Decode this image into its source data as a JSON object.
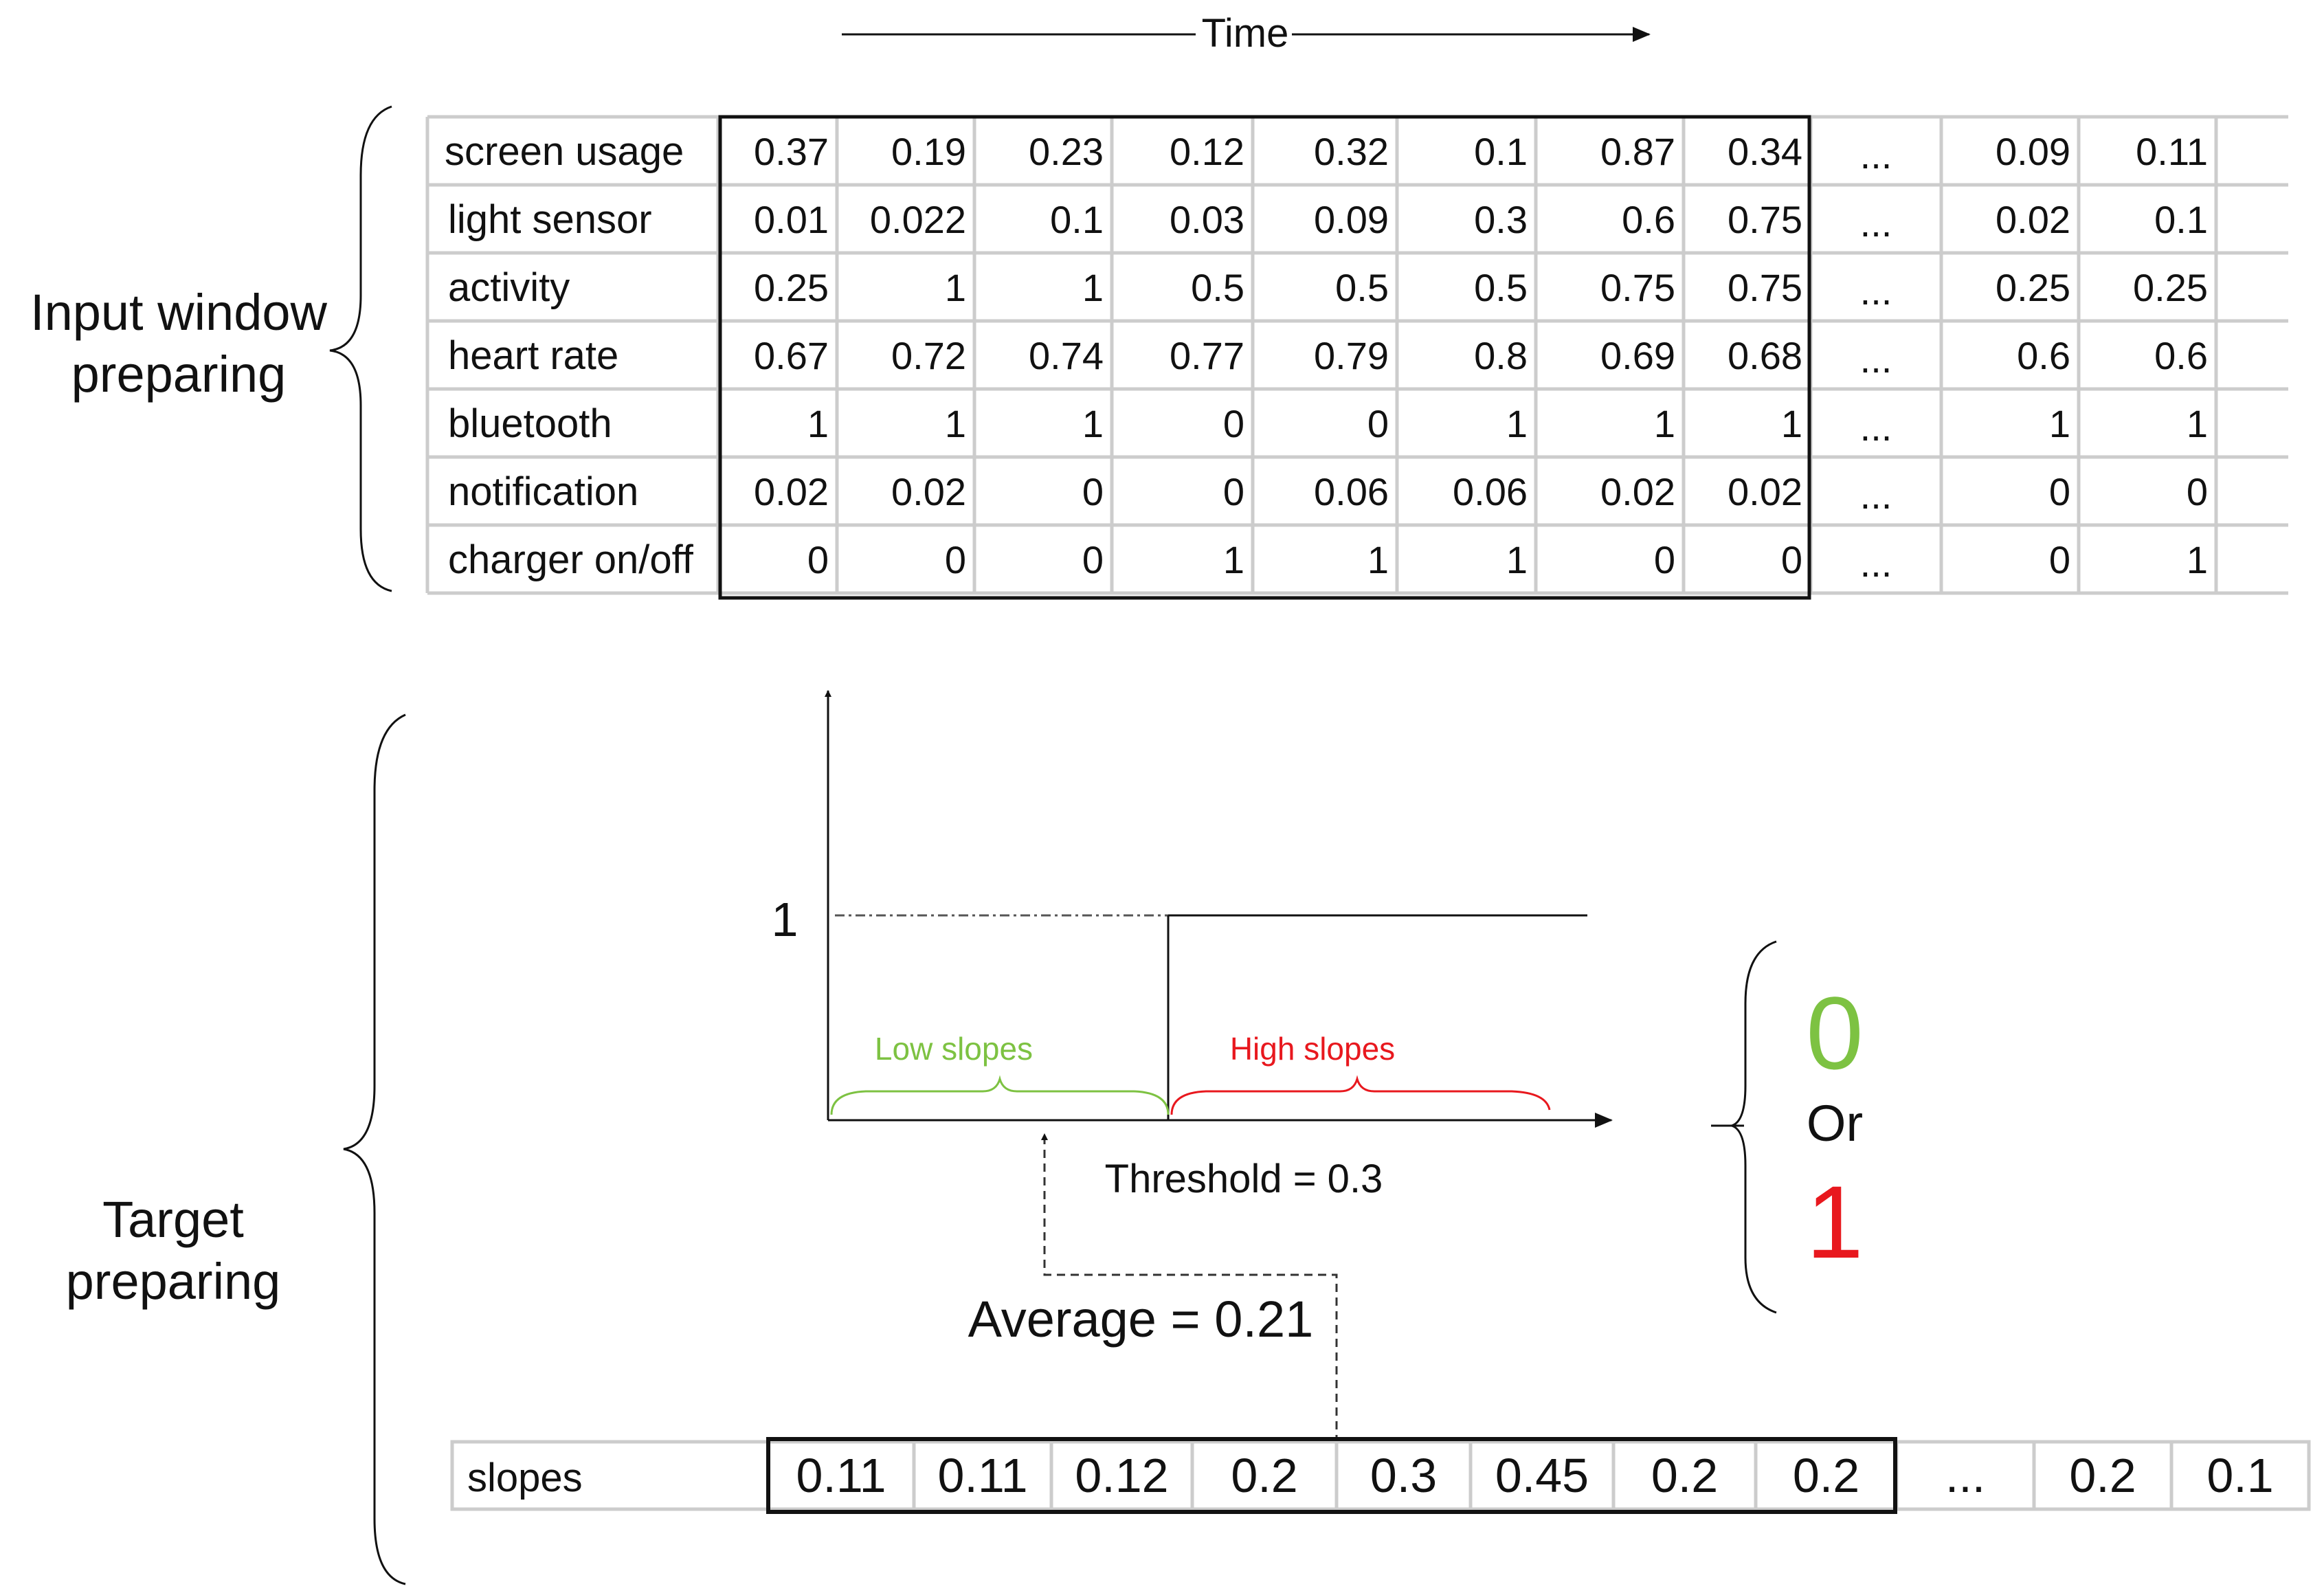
{
  "time_label": "Time",
  "input_section": {
    "label_line1": "Input window",
    "label_line2": "preparing"
  },
  "target_section": {
    "label_line1": "Target",
    "label_line2": "preparing"
  },
  "input_table": {
    "rows": [
      {
        "name": "screen usage",
        "values": [
          "0.37",
          "0.19",
          "0.23",
          "0.12",
          "0.32",
          "0.1",
          "0.87",
          "0.34",
          "...",
          "0.09",
          "0.11"
        ]
      },
      {
        "name": "light sensor",
        "values": [
          "0.01",
          "0.022",
          "0.1",
          "0.03",
          "0.09",
          "0.3",
          "0.6",
          "0.75",
          "...",
          "0.02",
          "0.1"
        ]
      },
      {
        "name": "activity",
        "values": [
          "0.25",
          "1",
          "1",
          "0.5",
          "0.5",
          "0.5",
          "0.75",
          "0.75",
          "...",
          "0.25",
          "0.25"
        ]
      },
      {
        "name": "heart rate",
        "values": [
          "0.67",
          "0.72",
          "0.74",
          "0.77",
          "0.79",
          "0.8",
          "0.69",
          "0.68",
          "...",
          "0.6",
          "0.6"
        ]
      },
      {
        "name": "bluetooth",
        "values": [
          "1",
          "1",
          "1",
          "0",
          "0",
          "1",
          "1",
          "1",
          "...",
          "1",
          "1"
        ]
      },
      {
        "name": "notification",
        "values": [
          "0.02",
          "0.02",
          "0",
          "0",
          "0.06",
          "0.06",
          "0.02",
          "0.02",
          "...",
          "0",
          "0"
        ]
      },
      {
        "name": "charger on/off",
        "values": [
          "0",
          "0",
          "0",
          "1",
          "1",
          "1",
          "0",
          "0",
          "...",
          "0",
          "1"
        ]
      }
    ]
  },
  "threshold_chart": {
    "y_tick": "1",
    "low_label": "Low slopes",
    "high_label": "High slopes",
    "threshold_label": "Threshold = 0.3",
    "average_label": "Average = 0.21",
    "low_color": "#7dc242",
    "high_color": "#e8181e"
  },
  "outcome": {
    "zero": "0",
    "or": "Or",
    "one": "1",
    "zero_color": "#7dc242",
    "one_color": "#e8181e"
  },
  "slopes_row": {
    "name": "slopes",
    "values": [
      "0.11",
      "0.11",
      "0.12",
      "0.2",
      "0.3",
      "0.45",
      "0.2",
      "0.2",
      "...",
      "0.2",
      "0.1"
    ]
  }
}
